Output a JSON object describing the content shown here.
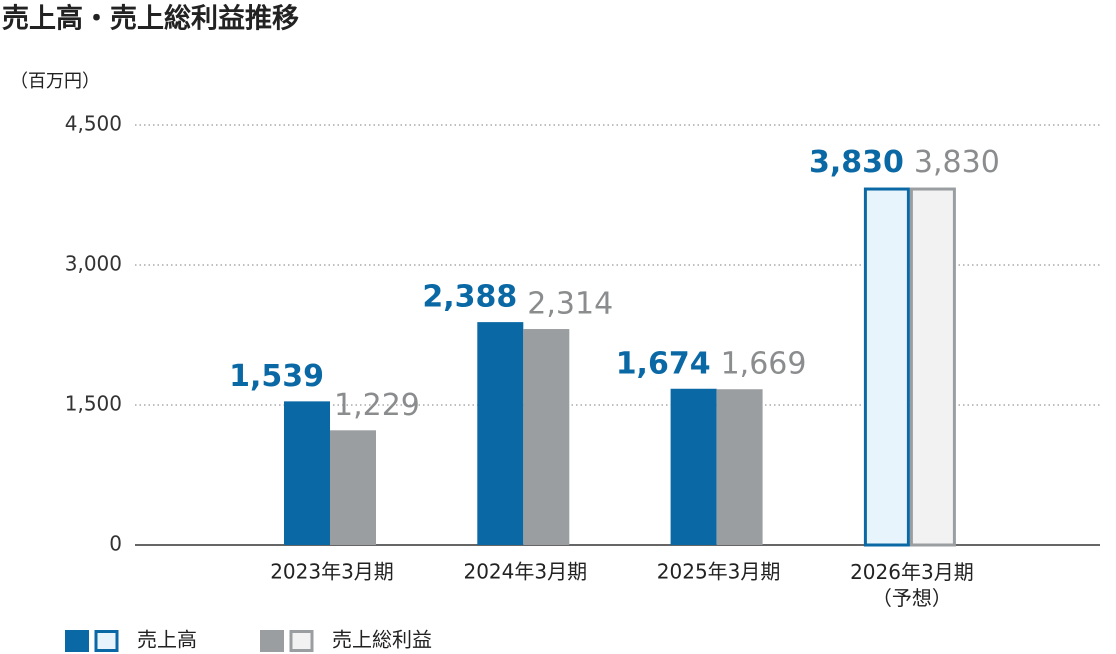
{
  "chart_data": {
    "type": "bar",
    "title": "売上高・売上総利益推移",
    "y_label": "（百万円）",
    "categories": [
      "2023年3月期",
      "2024年3月期",
      "2025年3月期",
      "2026年3月期\n（予想）"
    ],
    "forecast_index": 3,
    "series": [
      {
        "name": "売上高",
        "color": "#0a69a5",
        "forecast_fill": "#e8f4fc",
        "label_color": "#0a69a5",
        "values": [
          1539,
          2388,
          1674,
          3830
        ],
        "value_labels": [
          "1,539",
          "2,388",
          "1,674",
          "3,830"
        ]
      },
      {
        "name": "売上総利益",
        "color": "#9b9ea1",
        "forecast_fill": "#f2f2f2",
        "label_color": "#8a8c8e",
        "values": [
          1229,
          2314,
          1669,
          3830
        ],
        "value_labels": [
          "1,229",
          "2,314",
          "1,669",
          "3,830"
        ]
      }
    ],
    "ylim": [
      0,
      4500
    ],
    "yticks": [
      0,
      {
        "value": 1500,
        "label": "1,500"
      },
      {
        "value": 3000,
        "label": "3,000"
      },
      {
        "value": 4500,
        "label": "4,500"
      }
    ],
    "grid": true
  }
}
